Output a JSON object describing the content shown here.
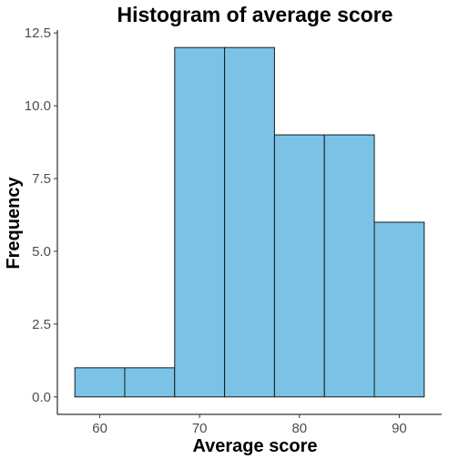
{
  "chart_data": {
    "type": "bar",
    "title": "Histogram of average score",
    "xlabel": "Average score",
    "ylabel": "Frequency",
    "bin_width": 5,
    "bins": [
      {
        "start": 57.5,
        "end": 62.5,
        "count": 1
      },
      {
        "start": 62.5,
        "end": 67.5,
        "count": 1
      },
      {
        "start": 67.5,
        "end": 72.5,
        "count": 12
      },
      {
        "start": 72.5,
        "end": 77.5,
        "count": 12
      },
      {
        "start": 77.5,
        "end": 82.5,
        "count": 9
      },
      {
        "start": 82.5,
        "end": 87.5,
        "count": 9
      },
      {
        "start": 87.5,
        "end": 92.5,
        "count": 6
      }
    ],
    "xlim": [
      55.75,
      94.25
    ],
    "ylim": [
      -0.6,
      12.6
    ],
    "xticks": [
      60,
      70,
      80,
      90
    ],
    "xtick_labels": [
      "60",
      "70",
      "80",
      "90"
    ],
    "yticks": [
      0,
      2.5,
      5,
      7.5,
      10,
      12.5
    ],
    "ytick_labels": [
      "0.0",
      "2.5",
      "5.0",
      "7.5",
      "10.0",
      "12.5"
    ],
    "grid": false,
    "legend": "none",
    "bar_color": "#7AC3E6",
    "bar_border_color": "#1a1a1a"
  }
}
